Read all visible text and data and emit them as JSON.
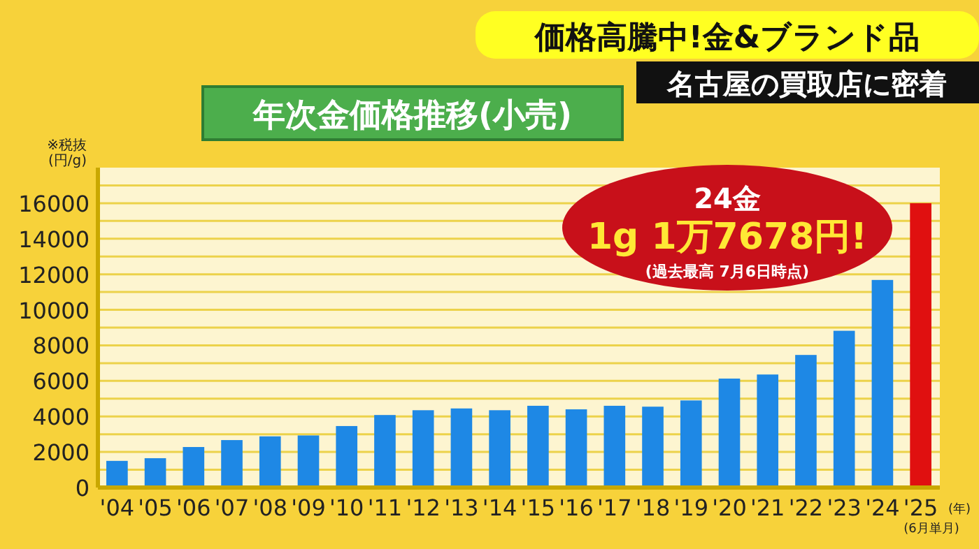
{
  "chart_data": {
    "type": "bar",
    "title": "価格高騰中!金&ブランド品",
    "subtitle": "名古屋の買取店に密着",
    "annotations": [
      "年次金価格推移(小売)",
      "24金",
      "1g 1万7678円!",
      "(過去最高 7月6日時点)",
      "(6月単月)"
    ],
    "ylabel": "※税抜\n(円/g)",
    "xlabel": "(年)",
    "categories": [
      "'04",
      "'05",
      "'06",
      "'07",
      "'08",
      "'09",
      "'10",
      "'11",
      "'12",
      "'13",
      "'14",
      "'15",
      "'16",
      "'17",
      "'18",
      "'19",
      "'20",
      "'21",
      "'22",
      "'23",
      "'24",
      "'25"
    ],
    "values": [
      1500,
      1650,
      2280,
      2670,
      2880,
      2930,
      3460,
      4080,
      4350,
      4450,
      4350,
      4600,
      4400,
      4600,
      4550,
      4900,
      6130,
      6360,
      7460,
      8820,
      11680,
      16000
    ],
    "colors": [
      "#1e88e5",
      "#1e88e5",
      "#1e88e5",
      "#1e88e5",
      "#1e88e5",
      "#1e88e5",
      "#1e88e5",
      "#1e88e5",
      "#1e88e5",
      "#1e88e5",
      "#1e88e5",
      "#1e88e5",
      "#1e88e5",
      "#1e88e5",
      "#1e88e5",
      "#1e88e5",
      "#1e88e5",
      "#1e88e5",
      "#1e88e5",
      "#1e88e5",
      "#1e88e5",
      "#e01010"
    ],
    "ylim": [
      0,
      18000
    ],
    "yticks": [
      0,
      {
        "value": 1000,
        "label": null
      },
      2000,
      {
        "value": 3000,
        "label": null
      },
      4000,
      {
        "value": 5000,
        "label": null
      },
      6000,
      {
        "value": 7000,
        "label": null
      },
      8000,
      {
        "value": 9000,
        "label": null
      },
      10000,
      {
        "value": 11000,
        "label": null
      },
      12000,
      {
        "value": 13000,
        "label": null
      },
      14000,
      {
        "value": 15000,
        "label": null
      },
      16000,
      {
        "value": 17000,
        "label": null
      }
    ],
    "grid": "y"
  }
}
